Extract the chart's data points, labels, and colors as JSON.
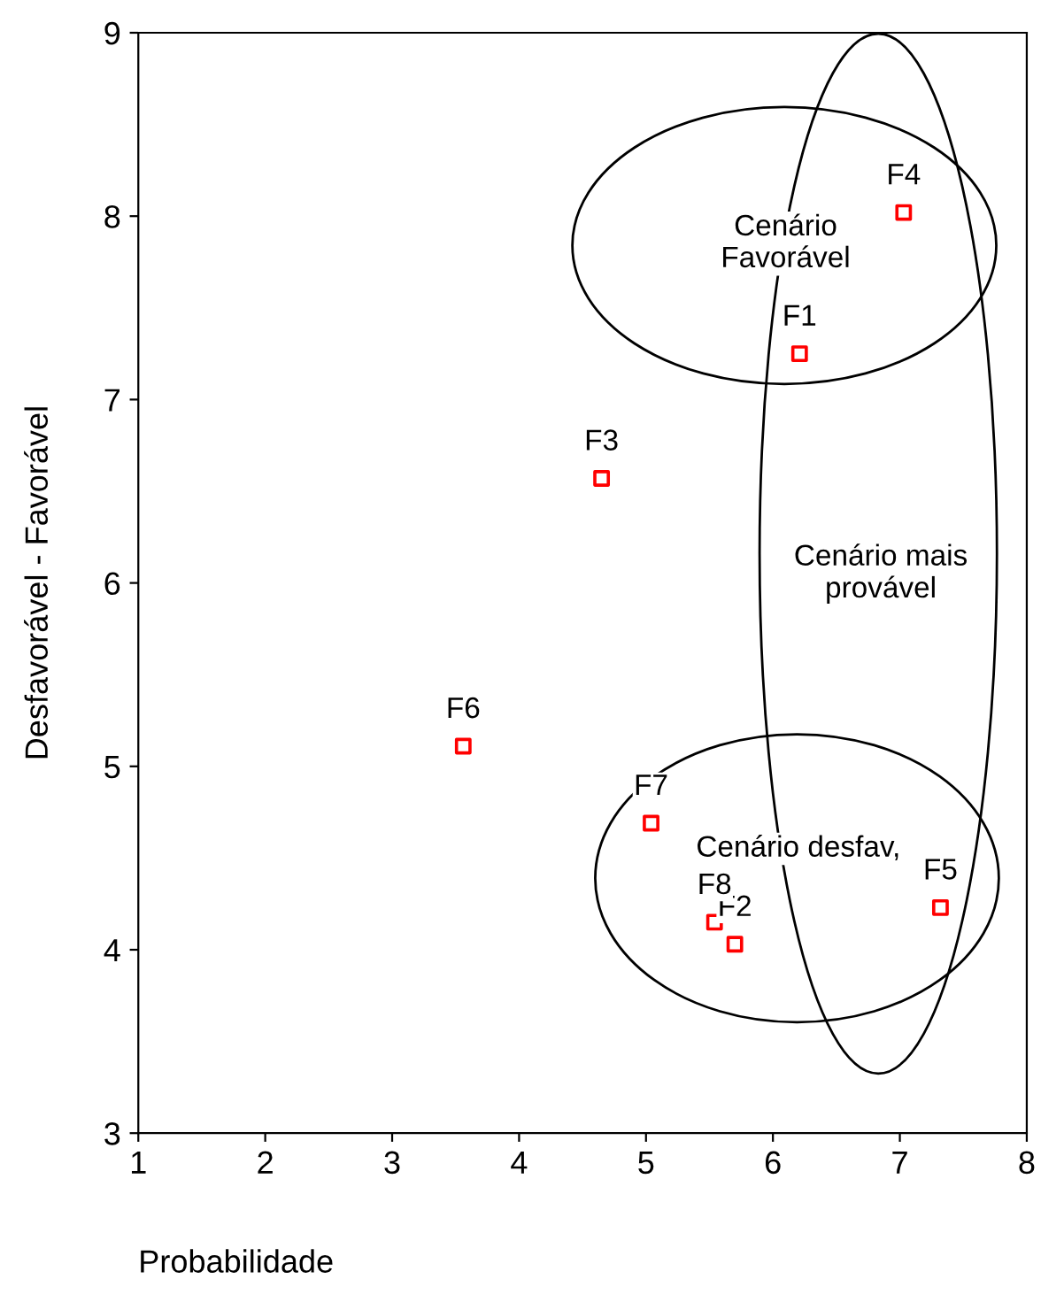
{
  "chart_data": {
    "type": "scatter",
    "xlabel": "Probabilidade",
    "ylabel": "Desfavorável - Favorável",
    "series": [
      {
        "color": "#ff0000",
        "x": [
          6.21,
          5.7,
          4.65,
          7.03,
          7.32,
          3.56,
          5.04,
          5.54
        ],
        "values": [
          7.25,
          4.03,
          6.57,
          8.02,
          4.23,
          5.11,
          4.69,
          4.15
        ],
        "value_labels": [
          "F1",
          "F2",
          "F3",
          "F4",
          "F5",
          "F6",
          "F7",
          "F8"
        ]
      }
    ],
    "marker": "square",
    "xlim": [
      1,
      8
    ],
    "xticks": [
      1,
      2,
      3,
      4,
      5,
      6,
      7,
      8
    ],
    "ylim": [
      3,
      9
    ],
    "yticks": [
      3,
      4,
      5,
      6,
      7,
      8,
      9
    ],
    "grid": false,
    "legend": false,
    "annotations": [
      "Cenário\nFavorável",
      "Cenário mais\nprovável",
      "Cenário desfav,"
    ]
  }
}
